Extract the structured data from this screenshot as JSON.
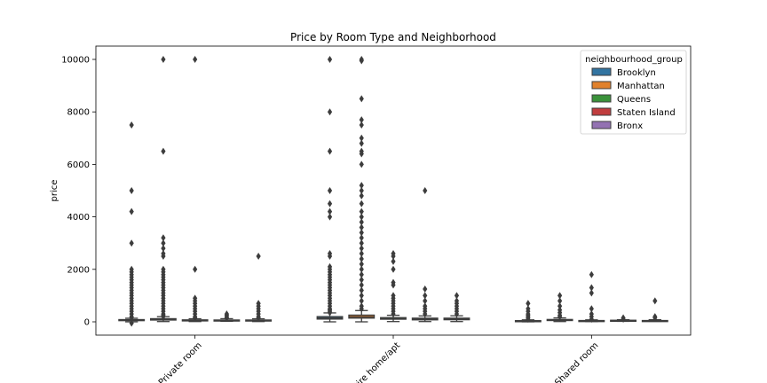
{
  "chart_data": {
    "type": "box",
    "title": "Price by Room Type and Neighborhood",
    "xlabel": "",
    "ylabel": "price",
    "ylim": [
      -500,
      10500
    ],
    "yticks": [
      0,
      2000,
      4000,
      6000,
      8000,
      10000
    ],
    "categories": [
      "Private room",
      "Entire home/apt",
      "Shared room"
    ],
    "legend": {
      "title": "neighbourhood_group",
      "position": "top-right"
    },
    "series": [
      {
        "name": "Brooklyn",
        "color": "#3274a1",
        "boxes": [
          {
            "q1": 50,
            "median": 65,
            "q3": 85,
            "whisker_low": 0,
            "whisker_high": 137,
            "outliers": [
              7500,
              5000,
              4200,
              3000,
              2000,
              1900,
              1800,
              1700,
              1600,
              1500,
              1400,
              1300,
              1200,
              1100,
              1000,
              900,
              800,
              700,
              600,
              500,
              400,
              300,
              200,
              150,
              -50
            ]
          },
          {
            "q1": 105,
            "median": 145,
            "q3": 199,
            "whisker_low": 0,
            "whisker_high": 340,
            "outliers": [
              10000,
              8000,
              6500,
              5000,
              4500,
              4200,
              4000,
              2600,
              2500,
              2100,
              2000,
              1900,
              1800,
              1700,
              1600,
              1500,
              1400,
              1300,
              1200,
              1100,
              1000,
              900,
              800,
              700,
              600,
              500,
              450,
              400,
              350
            ]
          },
          {
            "q1": 30,
            "median": 36,
            "q3": 45,
            "whisker_low": 0,
            "whisker_high": 75,
            "outliers": [
              700,
              500,
              400,
              300,
              250,
              200,
              150,
              100
            ]
          }
        ]
      },
      {
        "name": "Manhattan",
        "color": "#e1812c",
        "boxes": [
          {
            "q1": 68,
            "median": 90,
            "q3": 120,
            "whisker_low": 10,
            "whisker_high": 197,
            "outliers": [
              10000,
              6500,
              3200,
              3000,
              2800,
              2600,
              2500,
              2000,
              1900,
              1800,
              1700,
              1600,
              1500,
              1400,
              1300,
              1200,
              1100,
              1000,
              900,
              800,
              700,
              600,
              500,
              400,
              300,
              250,
              200
            ]
          },
          {
            "q1": 142,
            "median": 191,
            "q3": 256,
            "whisker_low": 0,
            "whisker_high": 430,
            "outliers": [
              10000,
              9950,
              8500,
              7700,
              7500,
              7000,
              6800,
              6500,
              6400,
              6000,
              5200,
              5000,
              4800,
              4500,
              4200,
              4000,
              3800,
              3600,
              3400,
              3200,
              3000,
              2800,
              2600,
              2400,
              2200,
              2000,
              1800,
              1600,
              1400,
              1200,
              1000,
              800,
              600,
              500
            ]
          },
          {
            "q1": 49,
            "median": 69,
            "q3": 90,
            "whisker_low": 10,
            "whisker_high": 150,
            "outliers": [
              1000,
              800,
              600,
              450,
              350,
              250,
              200
            ]
          }
        ]
      },
      {
        "name": "Queens",
        "color": "#3a923a",
        "boxes": [
          {
            "q1": 47,
            "median": 60,
            "q3": 75,
            "whisker_low": 10,
            "whisker_high": 117,
            "outliers": [
              10000,
              2000,
              900,
              800,
              700,
              600,
              500,
              400,
              300,
              200,
              150
            ]
          },
          {
            "q1": 100,
            "median": 120,
            "q3": 160,
            "whisker_low": 10,
            "whisker_high": 250,
            "outliers": [
              2600,
              2500,
              2300,
              2000,
              1500,
              1400,
              1000,
              900,
              800,
              700,
              600,
              500,
              400,
              300
            ]
          },
          {
            "q1": 33,
            "median": 40,
            "q3": 50,
            "whisker_low": 10,
            "whisker_high": 75,
            "outliers": [
              1800,
              1300,
              1100,
              500,
              300,
              200,
              100
            ]
          }
        ]
      },
      {
        "name": "Staten Island",
        "color": "#c03d3e",
        "boxes": [
          {
            "q1": 40,
            "median": 50,
            "q3": 70,
            "whisker_low": 20,
            "whisker_high": 120,
            "outliers": [
              300,
              250,
              200,
              150
            ]
          },
          {
            "q1": 75,
            "median": 100,
            "q3": 140,
            "whisker_low": 10,
            "whisker_high": 225,
            "outliers": [
              5000,
              1250,
              1000,
              800,
              600,
              500,
              400,
              300
            ]
          },
          {
            "q1": 30,
            "median": 50,
            "q3": 60,
            "whisker_low": 20,
            "whisker_high": 80,
            "outliers": [
              150,
              100
            ]
          }
        ]
      },
      {
        "name": "Bronx",
        "color": "#9372b2",
        "boxes": [
          {
            "q1": 40,
            "median": 53,
            "q3": 70,
            "whisker_low": 10,
            "whisker_high": 115,
            "outliers": [
              2500,
              700,
              600,
              500,
              400,
              300,
              200,
              150
            ]
          },
          {
            "q1": 80,
            "median": 100,
            "q3": 140,
            "whisker_low": 10,
            "whisker_high": 230,
            "outliers": [
              1000,
              800,
              700,
              600,
              500,
              400,
              300
            ]
          },
          {
            "q1": 28,
            "median": 40,
            "q3": 50,
            "whisker_low": 20,
            "whisker_high": 80,
            "outliers": [
              800,
              200,
              150
            ]
          }
        ]
      }
    ]
  }
}
